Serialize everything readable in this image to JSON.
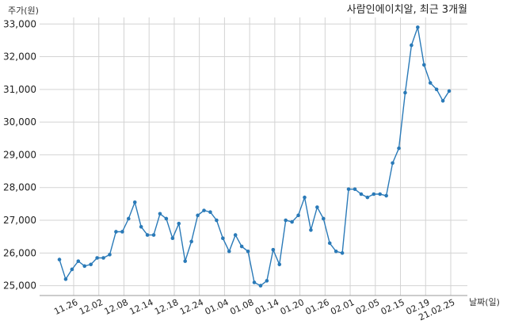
{
  "chart_data": {
    "type": "line",
    "title": "사람인에이치알, 최근 3개월",
    "ylabel": "주가(원)",
    "xlabel": "날짜(일)",
    "ylim": [
      24700,
      33200
    ],
    "yticks": [
      25000,
      26000,
      27000,
      28000,
      29000,
      30000,
      31000,
      32000,
      33000
    ],
    "yticklabels": [
      "25,000",
      "26,000",
      "27,000",
      "28,000",
      "29,000",
      "30,000",
      "31,000",
      "32,000",
      "33,000"
    ],
    "xticklabels": [
      "11.26",
      "12.02",
      "12.08",
      "12.14",
      "12.18",
      "12.24",
      "01.04",
      "01.08",
      "01.14",
      "01.20",
      "01.26",
      "02.01",
      "02.05",
      "02.15",
      "02.19",
      "21.02.25"
    ],
    "grid": true,
    "color": "#2a7ab8",
    "series": [
      {
        "values": [
          25800,
          25200,
          25500,
          25750,
          25600,
          25650,
          25850,
          25850,
          25950,
          26650,
          26650,
          27050,
          27550,
          26800,
          26550,
          26550,
          27200,
          27050,
          26450,
          26900,
          25750,
          26350,
          27150,
          27300,
          27250,
          27000,
          26450,
          26050,
          26550,
          26200,
          26050,
          25100,
          25000,
          25150,
          26100,
          25650,
          27000,
          26950,
          27150,
          27700,
          26700,
          27400,
          27050,
          26300,
          26050,
          26000,
          27950,
          27950,
          27800,
          27700,
          27800,
          27800,
          27750,
          28750,
          29200,
          30900,
          32350,
          32900,
          31750,
          31200,
          31000,
          30650,
          30950
        ]
      }
    ]
  }
}
